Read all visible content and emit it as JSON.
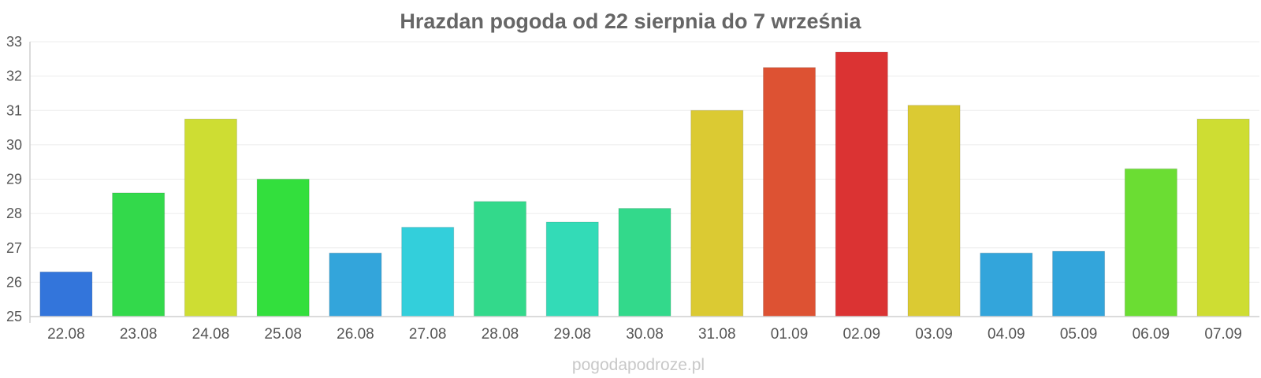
{
  "chart_data": {
    "type": "bar",
    "title": "Hrazdan pogoda od 22 sierpnia do 7 września",
    "xlabel": "",
    "ylabel": "",
    "ylim": [
      25,
      33
    ],
    "yticks": [
      "25",
      "26",
      "27",
      "28",
      "29",
      "30",
      "31",
      "32",
      "33"
    ],
    "categories": [
      "22.08",
      "23.08",
      "24.08",
      "25.08",
      "26.08",
      "27.08",
      "28.08",
      "29.08",
      "30.08",
      "31.08",
      "01.09",
      "02.09",
      "03.09",
      "04.09",
      "05.09",
      "06.09",
      "07.09"
    ],
    "values": [
      26.3,
      28.6,
      30.75,
      29.0,
      26.85,
      27.6,
      28.35,
      27.75,
      28.15,
      31.0,
      32.25,
      32.7,
      31.15,
      26.85,
      26.9,
      29.3,
      30.75
    ],
    "colors": [
      "#3375db",
      "#33d94b",
      "#cedd33",
      "#33df3d",
      "#33a5db",
      "#33cfdb",
      "#33d98b",
      "#33dbb7",
      "#33d98b",
      "#dbca33",
      "#dd5233",
      "#db3333",
      "#dbca33",
      "#33a5db",
      "#33a5db",
      "#6bdd33",
      "#cedd33"
    ],
    "grid": true,
    "legend": "none"
  },
  "watermark": "pogodapodroze.pl"
}
